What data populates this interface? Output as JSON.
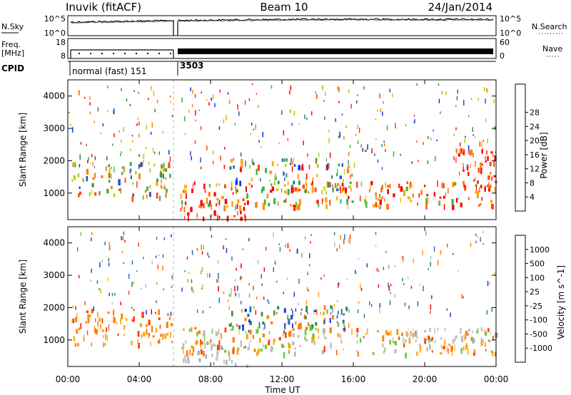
{
  "header": {
    "station": "Inuvik (fitACF)",
    "beam": "Beam 10",
    "date": "24/Jan/2014"
  },
  "top_panels": {
    "nsky_label": "N.Sky",
    "nsky_ticks": [
      "10^5",
      "10^0"
    ],
    "nsearch_label": "N.Search",
    "nsearch_ticks": [
      "10^5",
      "10^0"
    ],
    "freq_label_1": "Freq.",
    "freq_label_2": "[MHz]",
    "freq_ticks": [
      "18",
      "8"
    ],
    "nave_label": "Nave",
    "nave_ticks": [
      "60",
      "0"
    ],
    "cpid_label": "CPID",
    "cpid_segments": [
      {
        "label": "normal (fast) 151",
        "start_hour": 0,
        "end_hour": 6.05
      },
      {
        "label": "3503",
        "start_hour": 6.05,
        "end_hour": 24
      }
    ]
  },
  "chart_data": [
    {
      "type": "heatmap",
      "parameter": "Power",
      "ylabel": "Slant Range [km]",
      "ylim": [
        180,
        4500
      ],
      "yticks": [
        1000,
        2000,
        3000,
        4000
      ],
      "x_hours": [
        0,
        24
      ],
      "colorbar": {
        "label": "Power [dB]",
        "ticks": [
          "4",
          "8",
          "12",
          "16",
          "20",
          "24",
          "28"
        ],
        "colors": [
          "#0033ff",
          "#2a52be",
          "#2e8b57",
          "#3cb043",
          "#a6d608",
          "#ffa500",
          "#ff7f00",
          "#ff4500",
          "#ff0000"
        ]
      },
      "echo_regions": [
        {
          "t0": 0.2,
          "t1": 5.8,
          "r0": 900,
          "r1": 2000,
          "color": "mixed-orange-green"
        },
        {
          "t0": 6.3,
          "t1": 10.2,
          "r0": 250,
          "r1": 800,
          "color": "red"
        },
        {
          "t0": 6.3,
          "t1": 24,
          "r0": 600,
          "r1": 1400,
          "color": "mixed-orange-red"
        },
        {
          "t0": 9,
          "t1": 16,
          "r0": 1100,
          "r1": 2100,
          "color": "mixed"
        },
        {
          "t0": 21.5,
          "t1": 24,
          "r0": 1200,
          "r1": 2400,
          "color": "red"
        }
      ]
    },
    {
      "type": "heatmap",
      "parameter": "Velocity",
      "ylabel": "Slant Range [km]",
      "ylim": [
        180,
        4500
      ],
      "yticks": [
        1000,
        2000,
        3000,
        4000
      ],
      "x_hours": [
        0,
        24
      ],
      "colorbar": {
        "label": "Velocity [m s^-1]",
        "ticks": [
          "1000",
          "500",
          "100",
          "25",
          "-25",
          "-100",
          "-500",
          "-1000"
        ],
        "colors": [
          "#1a3fd1",
          "#2f6fbf",
          "#2e8b57",
          "#66cc33",
          "#bbbbbb",
          "#ffa500",
          "#ff7f00",
          "#ff4500",
          "#ff0000"
        ]
      },
      "echo_regions": [
        {
          "t0": 0.2,
          "t1": 5.8,
          "r0": 900,
          "r1": 2000,
          "color": "orange"
        },
        {
          "t0": 6.3,
          "t1": 10.2,
          "r0": 250,
          "r1": 1000,
          "color": "grey"
        },
        {
          "t0": 6.3,
          "t1": 24,
          "r0": 600,
          "r1": 1400,
          "color": "mixed-orange"
        },
        {
          "t0": 9,
          "t1": 16,
          "r0": 1300,
          "r1": 2100,
          "color": "mixed-blue-green"
        },
        {
          "t0": 18,
          "t1": 24,
          "r0": 1000,
          "r1": 1400,
          "color": "grey"
        }
      ]
    }
  ],
  "time_axis": {
    "ticks": [
      "00:00",
      "04:00",
      "08:00",
      "12:00",
      "16:00",
      "20:00",
      "00:00"
    ],
    "label": "Time UT"
  }
}
